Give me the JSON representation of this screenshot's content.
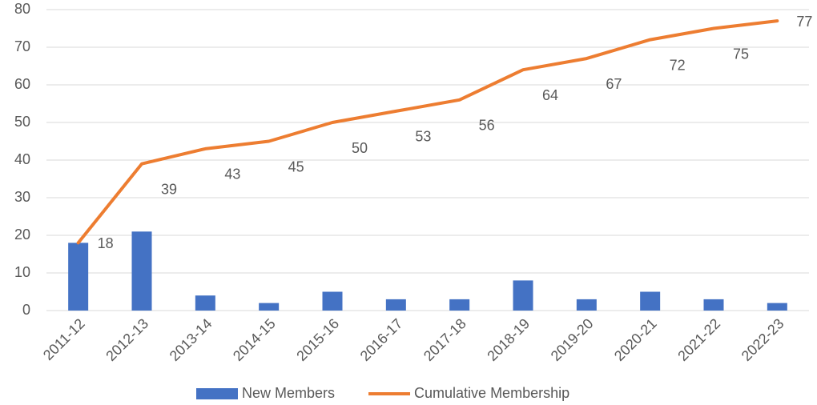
{
  "chart_data": {
    "type": "bar",
    "categories": [
      "2011-12",
      "2012-13",
      "2013-14",
      "2014-15",
      "2015-16",
      "2016-17",
      "2017-18",
      "2018-19",
      "2019-20",
      "2020-21",
      "2021-22",
      "2022-23"
    ],
    "series": [
      {
        "name": "New Members",
        "type": "bar",
        "color": "#4472c4",
        "values": [
          18,
          21,
          4,
          2,
          5,
          3,
          3,
          8,
          3,
          5,
          3,
          2
        ]
      },
      {
        "name": "Cumulative Membership",
        "type": "line",
        "color": "#ed7d31",
        "values": [
          18,
          39,
          43,
          45,
          50,
          53,
          56,
          64,
          67,
          72,
          75,
          77
        ],
        "data_labels": true
      }
    ],
    "ylim": [
      0,
      80
    ],
    "yticks": [
      0,
      10,
      20,
      30,
      40,
      50,
      60,
      70,
      80
    ],
    "grid": true,
    "legend": "bottom"
  }
}
